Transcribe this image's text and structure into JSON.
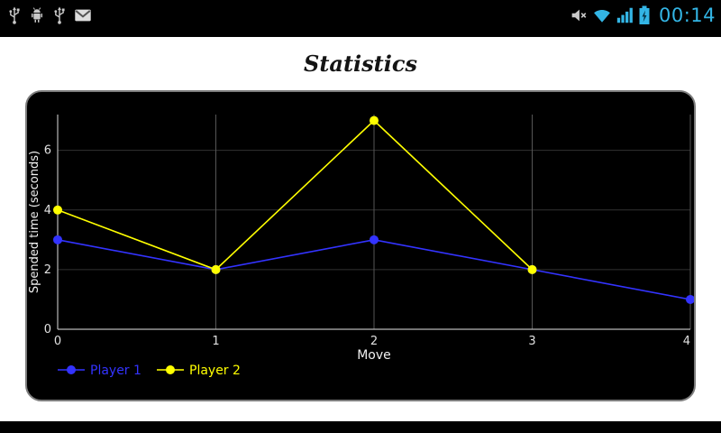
{
  "status_bar": {
    "time": "00:14",
    "accent_color": "#33b5e5",
    "left_icons": [
      "usb-icon",
      "usb-debug-icon",
      "usb-icon",
      "gmail-icon"
    ],
    "right_icons": [
      "mute-icon",
      "wifi-icon",
      "signal-icon",
      "battery-charging-icon"
    ]
  },
  "page": {
    "title": "Statistics"
  },
  "chart_data": {
    "type": "line",
    "title": "Statistics",
    "x": [
      0,
      1,
      2,
      3,
      4
    ],
    "x_ticks": [
      0,
      1,
      2,
      3,
      4
    ],
    "y_ticks": [
      0,
      2,
      4,
      6
    ],
    "ylim": [
      0,
      7.2
    ],
    "xlabel": "Move",
    "ylabel": "Spended time (seconds)",
    "grid": true,
    "legend_position": "bottom-left",
    "plot_background": "#000000",
    "grid_color": "#565656",
    "axis_color": "#b8b8b8",
    "tick_label_color": "#e0e0e0",
    "series": [
      {
        "name": "Player 1",
        "color": "#3333ff",
        "values": [
          3,
          2,
          3,
          2,
          1
        ]
      },
      {
        "name": "Player 2",
        "color": "#ffff00",
        "values": [
          4,
          2,
          7,
          2,
          null
        ]
      }
    ]
  }
}
